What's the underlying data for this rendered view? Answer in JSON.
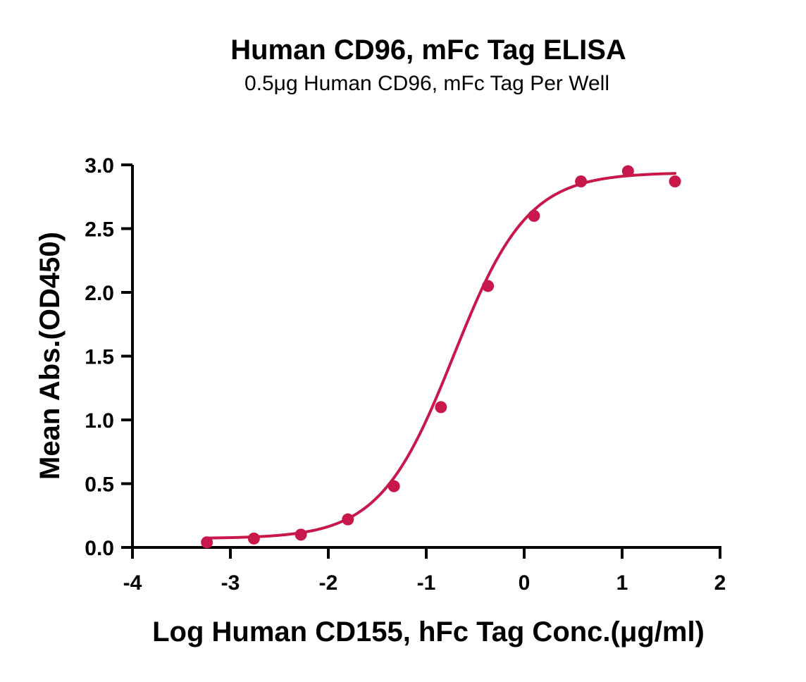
{
  "colors": {
    "series": "#C8174A",
    "axis": "#000000",
    "background": "#ffffff"
  },
  "chart_data": {
    "type": "scatter",
    "title": "Human CD96, mFc Tag ELISA",
    "subtitle": "0.5μg Human CD96, mFc Tag Per Well",
    "xlabel": "Log Human CD155, hFc Tag Conc.(μg/ml)",
    "ylabel": "Mean Abs.(OD450)",
    "xlim": [
      -4,
      2
    ],
    "ylim": [
      0,
      3
    ],
    "x_ticks": [
      "-4",
      "-3",
      "-2",
      "-1",
      "0",
      "1",
      "2"
    ],
    "y_ticks": [
      "0.0",
      "0.5",
      "1.0",
      "1.5",
      "2.0",
      "2.5",
      "3.0"
    ],
    "grid": false,
    "series": [
      {
        "points": [
          {
            "x": -3.24,
            "y": 0.04
          },
          {
            "x": -2.76,
            "y": 0.07
          },
          {
            "x": -2.28,
            "y": 0.1
          },
          {
            "x": -1.8,
            "y": 0.22
          },
          {
            "x": -1.33,
            "y": 0.48
          },
          {
            "x": -0.85,
            "y": 1.1
          },
          {
            "x": -0.37,
            "y": 2.05
          },
          {
            "x": 0.1,
            "y": 2.6
          },
          {
            "x": 0.58,
            "y": 2.87
          },
          {
            "x": 1.06,
            "y": 2.95
          },
          {
            "x": 1.54,
            "y": 2.87
          }
        ],
        "fit": {
          "model": "4PL",
          "bottom": 0.07,
          "top": 2.94,
          "logEC50": -0.72,
          "hill": 1.15,
          "x_range": [
            -3.24,
            1.54
          ]
        }
      }
    ]
  }
}
